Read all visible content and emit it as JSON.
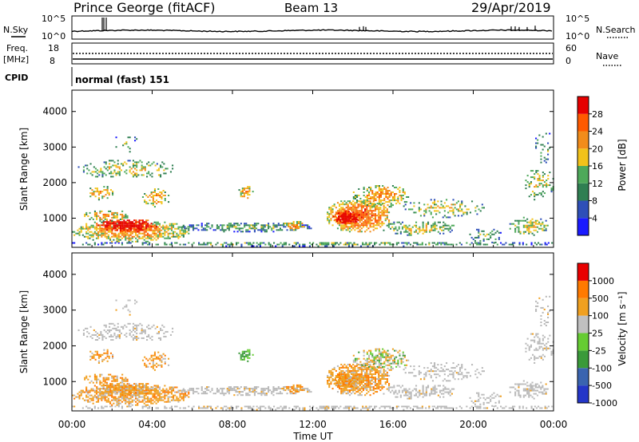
{
  "header": {
    "station": "Prince George (fitACF)",
    "beam": "Beam 13",
    "date": "29/Apr/2019"
  },
  "panels": {
    "nsky": {
      "left_label": "N.Sky",
      "left_ticks": [
        "10^5",
        "10^0"
      ],
      "right_label": "N.Search",
      "right_ticks": [
        "10^5",
        "10^0"
      ]
    },
    "freq": {
      "left_label_1": "Freq.",
      "left_label_2": "[MHz]",
      "left_ticks": [
        "18",
        "8"
      ],
      "right_label": "Nave",
      "right_ticks": [
        "60",
        "0"
      ]
    },
    "cpid": {
      "label": "CPID",
      "value": "normal (fast) 151"
    }
  },
  "chart_data": [
    {
      "type": "heatmap",
      "name": "power",
      "ylabel": "Slant Range [km]",
      "ylim": [
        180,
        4600
      ],
      "yticks": [
        "1000",
        "2000",
        "3000",
        "4000"
      ],
      "ytick_values": [
        1000,
        2000,
        3000,
        4000
      ],
      "xlim_hours": [
        0,
        24
      ],
      "colorbar": {
        "label": "Power [dB]",
        "range": [
          0,
          32
        ],
        "ticks": [
          "4",
          "8",
          "12",
          "16",
          "20",
          "24",
          "28"
        ],
        "tick_values": [
          4,
          8,
          12,
          16,
          20,
          24,
          28
        ]
      }
    },
    {
      "type": "heatmap",
      "name": "velocity",
      "ylabel": "Slant Range [km]",
      "ylim": [
        180,
        4600
      ],
      "yticks": [
        "1000",
        "2000",
        "3000",
        "4000"
      ],
      "ytick_values": [
        1000,
        2000,
        3000,
        4000
      ],
      "xlim_hours": [
        0,
        24
      ],
      "colorbar": {
        "label": "Velocity [m s⁻¹]",
        "ticks": [
          "1000",
          "500",
          "100",
          "25",
          "-25",
          "-100",
          "-500",
          "-1000"
        ]
      }
    }
  ],
  "xaxis": {
    "label": "Time UT",
    "ticks": [
      "00:00",
      "04:00",
      "08:00",
      "12:00",
      "16:00",
      "20:00",
      "00:00"
    ],
    "tick_hours": [
      0,
      4,
      8,
      12,
      16,
      20,
      24
    ]
  },
  "colors": {
    "power_scale": [
      "#1a1aff",
      "#2e4fb8",
      "#2f7f52",
      "#4ea95a",
      "#f2c21a",
      "#f28c1a",
      "#ff5a00",
      "#e60000"
    ],
    "velocity_scale": [
      "#2436c8",
      "#3a64b0",
      "#3a9a3a",
      "#66cc33",
      "#c0c0c0",
      "#f0a020",
      "#ff7a00",
      "#e80000"
    ],
    "ground_scatter": "#b8b8b8"
  }
}
